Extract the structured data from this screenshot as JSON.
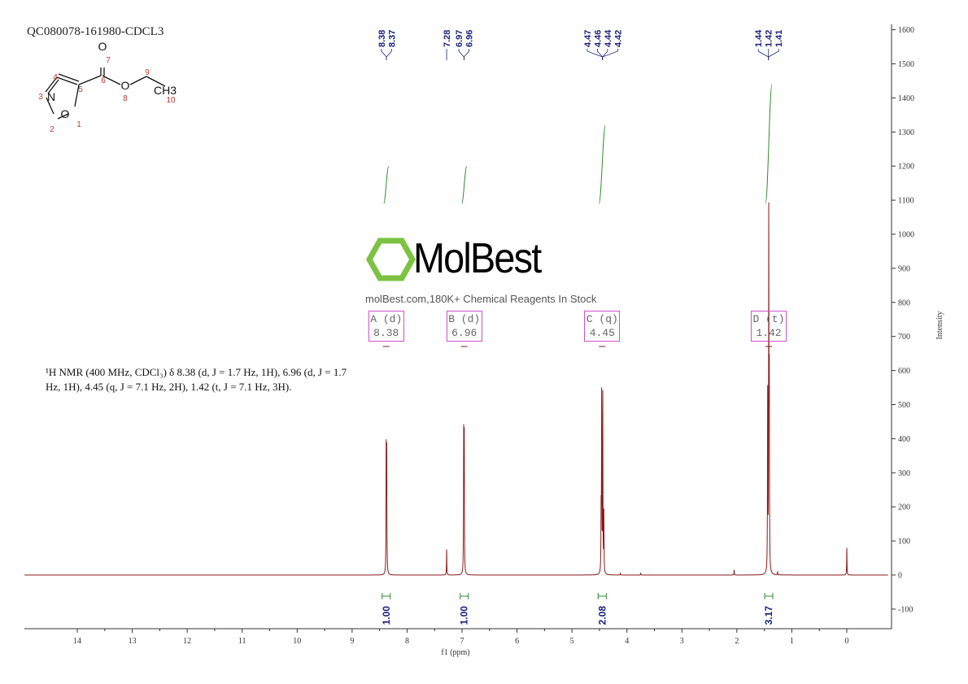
{
  "title": "QC080078-161980-CDCL3",
  "description": "¹H NMR (400 MHz, CDCl₃) δ 8.38 (d, J = 1.7 Hz, 1H), 6.96 (d, J = 1.7 Hz, 1H), 4.45 (q, J = 7.1 Hz, 2H), 1.42 (t, J = 7.1 Hz, 3H).",
  "watermark": {
    "logo": "MolBest",
    "text": "molBest.com,180K+ Chemical Reagents In Stock",
    "color": "#7dc242"
  },
  "structure": {
    "atoms": [
      "O",
      "O",
      "N",
      "O",
      "CH3"
    ],
    "numbers": [
      "1",
      "2",
      "3",
      "4",
      "5",
      "6",
      "7",
      "8",
      "9",
      "10"
    ]
  },
  "colors": {
    "spectrum": "#8b1a1a",
    "integral": "#2e8b2e",
    "peak_labels": "#1a237e",
    "multiplet_box": "#d050d0"
  },
  "chart_data": {
    "type": "line",
    "xlabel": "f1 (ppm)",
    "ylabel": "Intensity",
    "xlim": [
      14.96,
      -0.75
    ],
    "ylim": [
      -157,
      1617
    ],
    "x_reversed": true,
    "grid": false,
    "xticks": [
      14,
      13,
      12,
      11,
      10,
      9,
      8,
      7,
      6,
      5,
      4,
      3,
      2,
      1,
      0
    ],
    "yticks": [
      1600,
      1500,
      1400,
      1300,
      1200,
      1100,
      1000,
      900,
      800,
      700,
      600,
      500,
      400,
      300,
      200,
      100,
      0,
      -100
    ],
    "peaks": [
      {
        "ppm": 8.38,
        "height": 360
      },
      {
        "ppm": 8.37,
        "height": 350
      },
      {
        "ppm": 7.28,
        "height": 75
      },
      {
        "ppm": 6.97,
        "height": 400
      },
      {
        "ppm": 6.96,
        "height": 390
      },
      {
        "ppm": 4.47,
        "height": 170
      },
      {
        "ppm": 4.46,
        "height": 515
      },
      {
        "ppm": 4.44,
        "height": 520
      },
      {
        "ppm": 4.42,
        "height": 175
      },
      {
        "ppm": 4.12,
        "height": 5
      },
      {
        "ppm": 3.75,
        "height": 5
      },
      {
        "ppm": 2.05,
        "height": 15
      },
      {
        "ppm": 1.44,
        "height": 520
      },
      {
        "ppm": 1.42,
        "height": 1020
      },
      {
        "ppm": 1.41,
        "height": 530
      },
      {
        "ppm": 1.26,
        "height": 10
      },
      {
        "ppm": 0.0,
        "height": 80
      }
    ],
    "peak_labels": [
      {
        "group": [
          "8.38",
          "8.37"
        ],
        "ppm": 8.375
      },
      {
        "group": [
          "7.28"
        ],
        "ppm": 7.28
      },
      {
        "group": [
          "6.97",
          "6.96"
        ],
        "ppm": 6.965
      },
      {
        "group": [
          "4.47",
          "4.46",
          "4.44",
          "4.42"
        ],
        "ppm": 4.445
      },
      {
        "group": [
          "1.44",
          "1.42",
          "1.41"
        ],
        "ppm": 1.425
      }
    ],
    "multiplets": [
      {
        "label": "A (d)",
        "shift": "8.38",
        "ppm": 8.38
      },
      {
        "label": "B (d)",
        "shift": "6.96",
        "ppm": 6.96
      },
      {
        "label": "C (q)",
        "shift": "4.45",
        "ppm": 4.45
      },
      {
        "label": "D (t)",
        "shift": "1.42",
        "ppm": 1.42
      }
    ],
    "integrals": [
      {
        "ppm": 8.38,
        "value": "1.00",
        "start": 1090,
        "end": 1200
      },
      {
        "ppm": 6.96,
        "value": "1.00",
        "start": 1090,
        "end": 1200
      },
      {
        "ppm": 4.45,
        "value": "2.08",
        "start": 1090,
        "end": 1320
      },
      {
        "ppm": 1.42,
        "value": "3.17",
        "start": 1090,
        "end": 1440
      }
    ]
  }
}
